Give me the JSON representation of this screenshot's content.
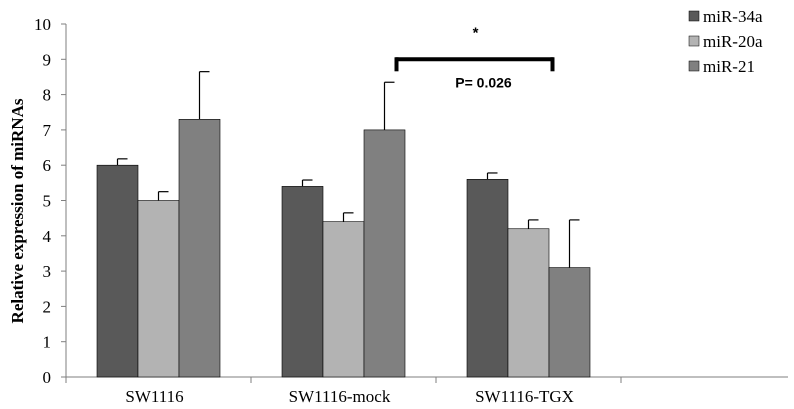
{
  "chart_data": {
    "type": "bar",
    "categories": [
      "SW1116",
      "SW1116-mock",
      "SW1116-TGX"
    ],
    "series": [
      {
        "name": "miR-34a",
        "color": "#595959",
        "values": [
          6.0,
          5.4,
          5.6
        ],
        "errors": [
          0.18,
          0.18,
          0.18
        ]
      },
      {
        "name": "miR-20a",
        "color": "#b3b3b3",
        "values": [
          5.0,
          4.4,
          4.2
        ],
        "errors": [
          0.25,
          0.25,
          0.25
        ]
      },
      {
        "name": "miR-21",
        "color": "#808080",
        "values": [
          7.3,
          7.0,
          3.1
        ],
        "errors": [
          1.35,
          1.35,
          1.35
        ]
      }
    ],
    "ylabel": "Relative expression of miRNAs",
    "xlabel": "",
    "ylim": [
      0,
      10
    ],
    "yticks": [
      "0",
      "1",
      "2",
      "3",
      "4",
      "5",
      "6",
      "7",
      "8",
      "9",
      "10"
    ],
    "grid": false,
    "legend_position": "top-right",
    "annotation": {
      "star": "*",
      "p_text": "P= 0.026",
      "from_category": 1,
      "to_category": 2,
      "level": 9.0
    }
  }
}
